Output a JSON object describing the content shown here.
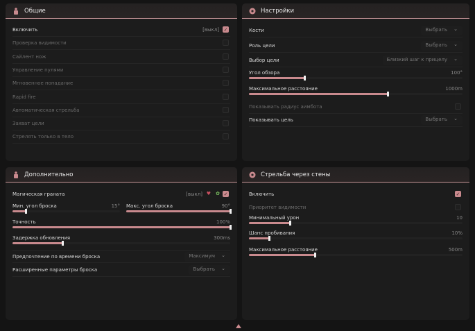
{
  "colors": {
    "accent": "#c98a8e",
    "panel": "#1c1c1c",
    "background": "#141414"
  },
  "general": {
    "title": "Общие",
    "icon": "character-icon",
    "items": [
      {
        "label": "Включить",
        "key": "[выкл]",
        "checked": true
      },
      {
        "label": "Проверка видимости",
        "checked": false
      },
      {
        "label": "Сайлент нож",
        "checked": false
      },
      {
        "label": "Управление пулями",
        "checked": false
      },
      {
        "label": "Мгновенное попадание",
        "checked": false
      },
      {
        "label": "Rapid fire",
        "checked": false
      },
      {
        "label": "Автоматическая стрельба",
        "checked": false
      },
      {
        "label": "Захват цели",
        "checked": false
      },
      {
        "label": "Стрелять только в тело",
        "checked": false
      }
    ]
  },
  "settings": {
    "title": "Настройки",
    "icon": "gear-icon",
    "bones": {
      "label": "Кости",
      "value": "Выбрать"
    },
    "target_role": {
      "label": "Роль цели",
      "value": "Выбрать"
    },
    "target_select": {
      "label": "Выбор цели",
      "value": "Близкий шаг к прицелу"
    },
    "fov": {
      "label": "Угол обзора",
      "value": "100°",
      "fraction": 0.26
    },
    "max_distance": {
      "label": "Максимальное расстояние",
      "value": "1000m",
      "fraction": 0.65
    },
    "show_radius": {
      "label": "Показывать радиус аимбота",
      "checked": false
    },
    "show_target": {
      "label": "Показывать цель",
      "value": "Выбрать"
    }
  },
  "extra": {
    "title": "Дополнительно",
    "icon": "character-icon",
    "magic_grenade": {
      "label": "Магическая граната",
      "key": "[выкл]",
      "checked": true
    },
    "min_angle": {
      "label": "Мин. угол броска",
      "value": "15°",
      "fraction": 0.12
    },
    "max_angle": {
      "label": "Макс. угол броска",
      "value": "90°",
      "fraction": 1.0
    },
    "accuracy": {
      "label": "Точность",
      "value": "100%",
      "fraction": 1.0
    },
    "update_delay": {
      "label": "Задержка обновления",
      "value": "300ms",
      "fraction": 0.23
    },
    "throw_pref": {
      "label": "Предпочтение по времени броска",
      "value": "Максимум"
    },
    "advanced": {
      "label": "Расширенные параметры броска",
      "value": "Выбрать"
    }
  },
  "wallbang": {
    "title": "Стрельба через стены",
    "icon": "gear-icon",
    "enable": {
      "label": "Включить",
      "checked": true
    },
    "vis_priority": {
      "label": "Приоритет видимости",
      "checked": false
    },
    "min_damage": {
      "label": "Минимальный урон",
      "value": "10",
      "fraction": 0.19
    },
    "pen_chance": {
      "label": "Шанс пробивания",
      "value": "10%",
      "fraction": 0.095
    },
    "max_distance": {
      "label": "Максимальное расстояние",
      "value": "500m",
      "fraction": 0.31
    }
  }
}
